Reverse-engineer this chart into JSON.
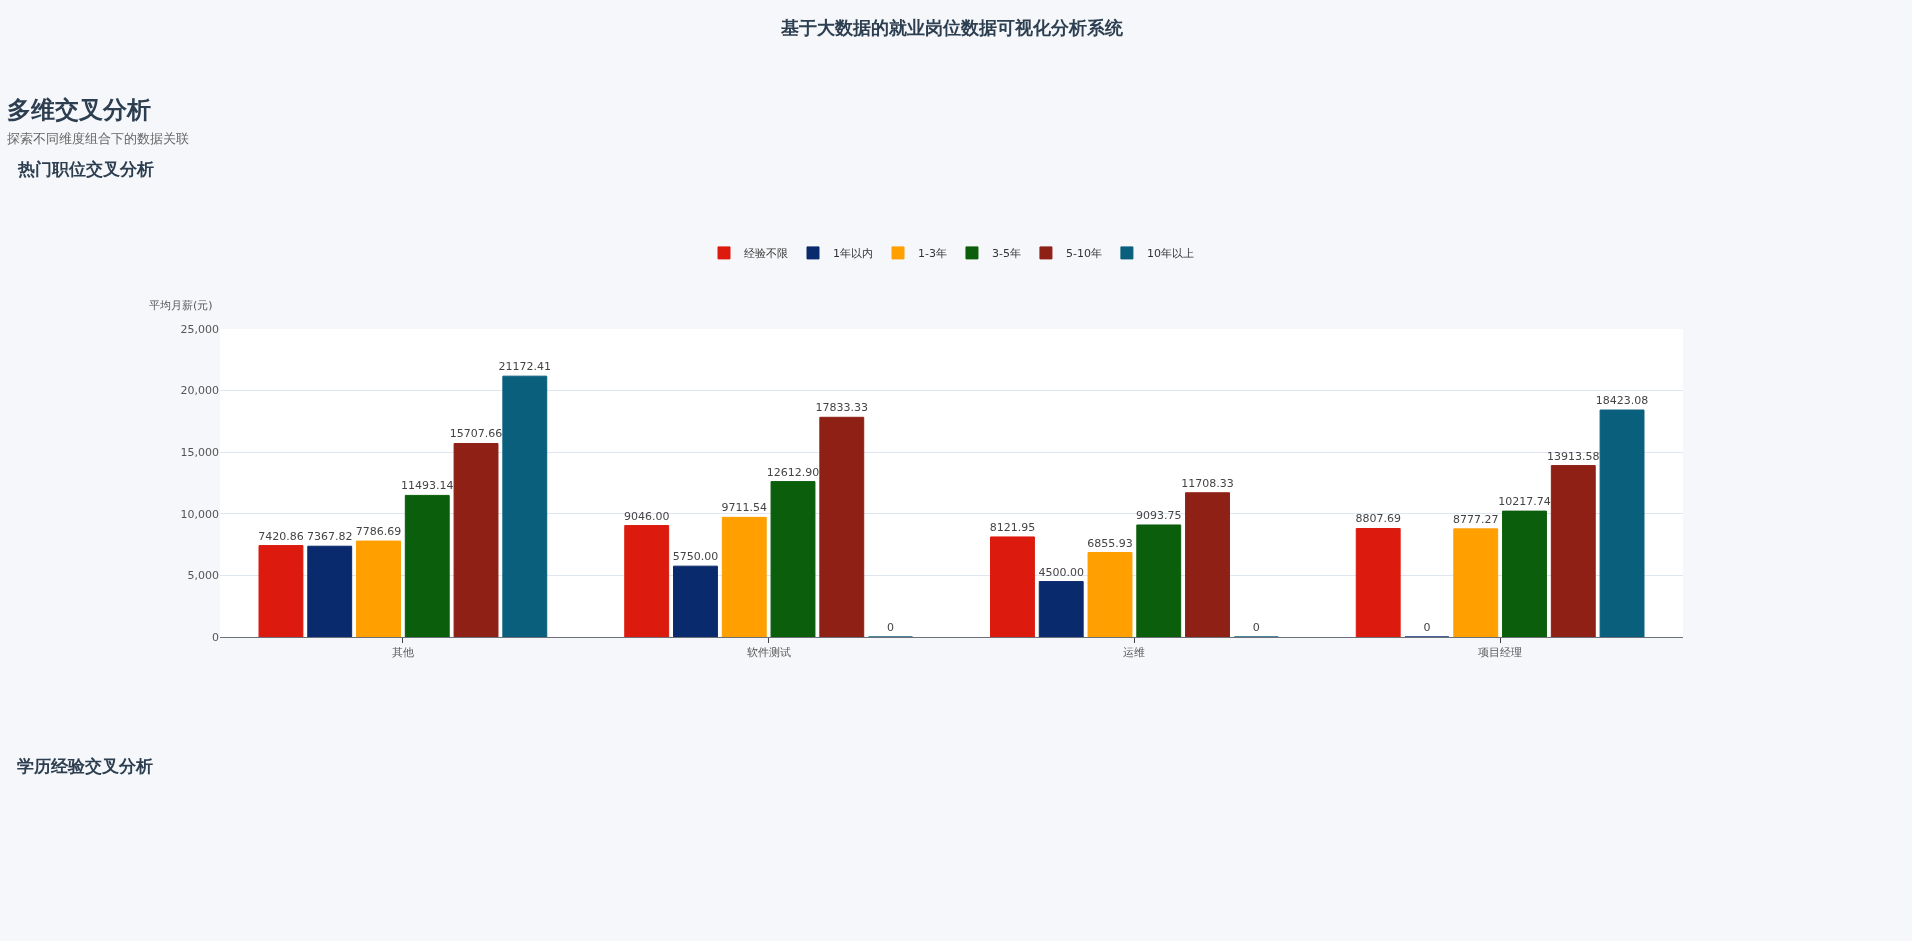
{
  "chart_data": {
    "type": "bar",
    "title": "热门职位交叉分析",
    "ylabel": "平均月薪(元)",
    "annotations": [
      "基于大数据的就业岗位数据可视化分析系统",
      "多维交叉分析",
      "探索不同维度组合下的数据关联",
      "学历经验交叉分析"
    ],
    "categories": [
      "其他",
      "软件测试",
      "运维",
      "项目经理"
    ],
    "series": [
      {
        "name": "经验不限",
        "color": "#dd1a0e",
        "values": [
          7420.86,
          9046.0,
          8121.95,
          8807.69
        ],
        "value_labels": [
          "7420.86",
          "9046.00",
          "8121.95",
          "8807.69"
        ]
      },
      {
        "name": "1年以内",
        "color": "#0a2a6e",
        "values": [
          7367.82,
          5750.0,
          4500.0,
          0
        ],
        "value_labels": [
          "7367.82",
          "5750.00",
          "4500.00",
          "0"
        ]
      },
      {
        "name": "1-3年",
        "color": "#ff9f00",
        "values": [
          7786.69,
          9711.54,
          6855.93,
          8777.27
        ],
        "value_labels": [
          "7786.69",
          "9711.54",
          "6855.93",
          "8777.27"
        ]
      },
      {
        "name": "3-5年",
        "color": "#0b5e0b",
        "values": [
          11493.14,
          12612.9,
          9093.75,
          10217.74
        ],
        "value_labels": [
          "11493.14",
          "12612.90",
          "9093.75",
          "10217.74"
        ]
      },
      {
        "name": "5-10年",
        "color": "#8e2016",
        "values": [
          15707.66,
          17833.33,
          11708.33,
          13913.58
        ],
        "value_labels": [
          "15707.66",
          "17833.33",
          "11708.33",
          "13913.58"
        ]
      },
      {
        "name": "10年以上",
        "color": "#0a5f7d",
        "values": [
          21172.41,
          0,
          0,
          18423.08
        ],
        "value_labels": [
          "21172.41",
          "0",
          "0",
          "18423.08"
        ]
      }
    ],
    "ylim": [
      0,
      25000
    ],
    "yticks": [
      0,
      {
        "value": 5000,
        "label": "5,000"
      },
      {
        "value": 10000,
        "label": "10,000"
      },
      {
        "value": 15000,
        "label": "15,000"
      },
      {
        "value": 20000,
        "label": "20,000"
      },
      {
        "value": 25000,
        "label": "25,000"
      }
    ],
    "grid": "y",
    "legend": "top"
  }
}
